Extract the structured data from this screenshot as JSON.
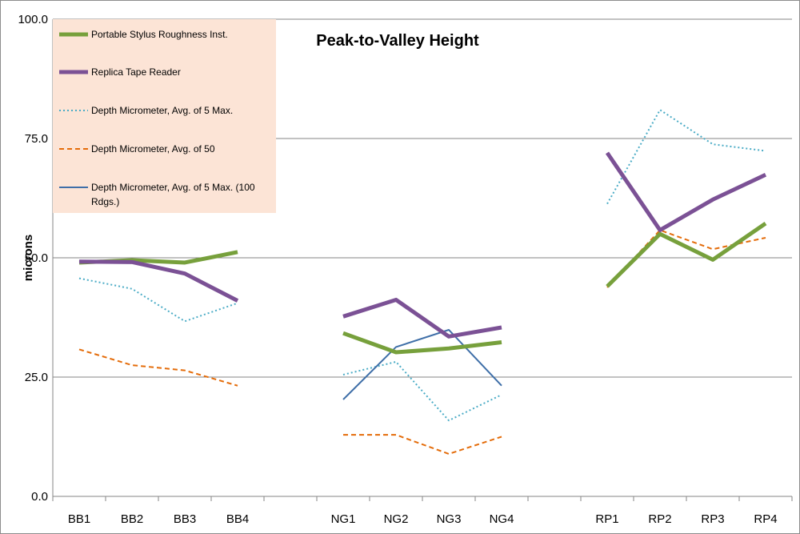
{
  "chart_data": {
    "type": "line",
    "title": "Peak-to-Valley Height",
    "xlabel": "",
    "ylabel": "microns",
    "ylim": [
      0,
      100
    ],
    "yticks": [
      0,
      25,
      50,
      75,
      100
    ],
    "ytick_labels": [
      "0.0",
      "25.0",
      "50.0",
      "75.0",
      "100.0"
    ],
    "categories": [
      "BB1",
      "BB2",
      "BB3",
      "BB4",
      "",
      "NG1",
      "NG2",
      "NG3",
      "NG4",
      "",
      "RP1",
      "RP2",
      "RP3",
      "RP4"
    ],
    "grid": true,
    "legend_position": "top-left",
    "series": [
      {
        "name": "Portable Stylus Roughness Inst.",
        "color": "#77a03c",
        "style": "solid-thick",
        "values": [
          49.0,
          49.5,
          49.0,
          51.2,
          null,
          34.2,
          30.2,
          31.0,
          32.3,
          null,
          44.0,
          55.0,
          49.6,
          57.2
        ]
      },
      {
        "name": "Replica Tape Reader",
        "color": "#7b5195",
        "style": "solid-thick",
        "values": [
          49.2,
          49.1,
          46.7,
          41.0,
          null,
          37.7,
          41.2,
          33.5,
          35.4,
          null,
          72.0,
          55.8,
          62.2,
          67.4
        ]
      },
      {
        "name": "Depth Micrometer, Avg. of 5 Max.",
        "color": "#4bacc6",
        "style": "dotted",
        "values": [
          45.7,
          43.5,
          36.7,
          40.5,
          null,
          25.5,
          28.2,
          15.9,
          21.3,
          null,
          61.3,
          81.0,
          73.8,
          72.4
        ]
      },
      {
        "name": "Depth Micrometer, Avg. of 50",
        "color": "#e46c0a",
        "style": "dashed",
        "values": [
          30.8,
          27.5,
          26.4,
          23.2,
          null,
          12.9,
          12.9,
          8.9,
          12.5,
          null,
          43.8,
          55.8,
          51.8,
          54.2
        ]
      },
      {
        "name": "Depth Micrometer, Avg. of 5 Max. (100 Rdgs.)",
        "color": "#3f6fa8",
        "style": "solid-thin",
        "values": [
          null,
          null,
          null,
          null,
          null,
          20.3,
          31.3,
          34.9,
          23.2,
          null,
          null,
          null,
          null,
          null
        ]
      }
    ]
  },
  "legend": {
    "entry0": "Portable Stylus Roughness Inst.",
    "entry1": "Replica Tape Reader",
    "entry2": "Depth Micrometer, Avg. of 5 Max.",
    "entry3": "Depth Micrometer, Avg. of 50",
    "entry4_line1": "Depth Micrometer, Avg. of 5 Max. (100",
    "entry4_line2": "Rdgs.)"
  }
}
